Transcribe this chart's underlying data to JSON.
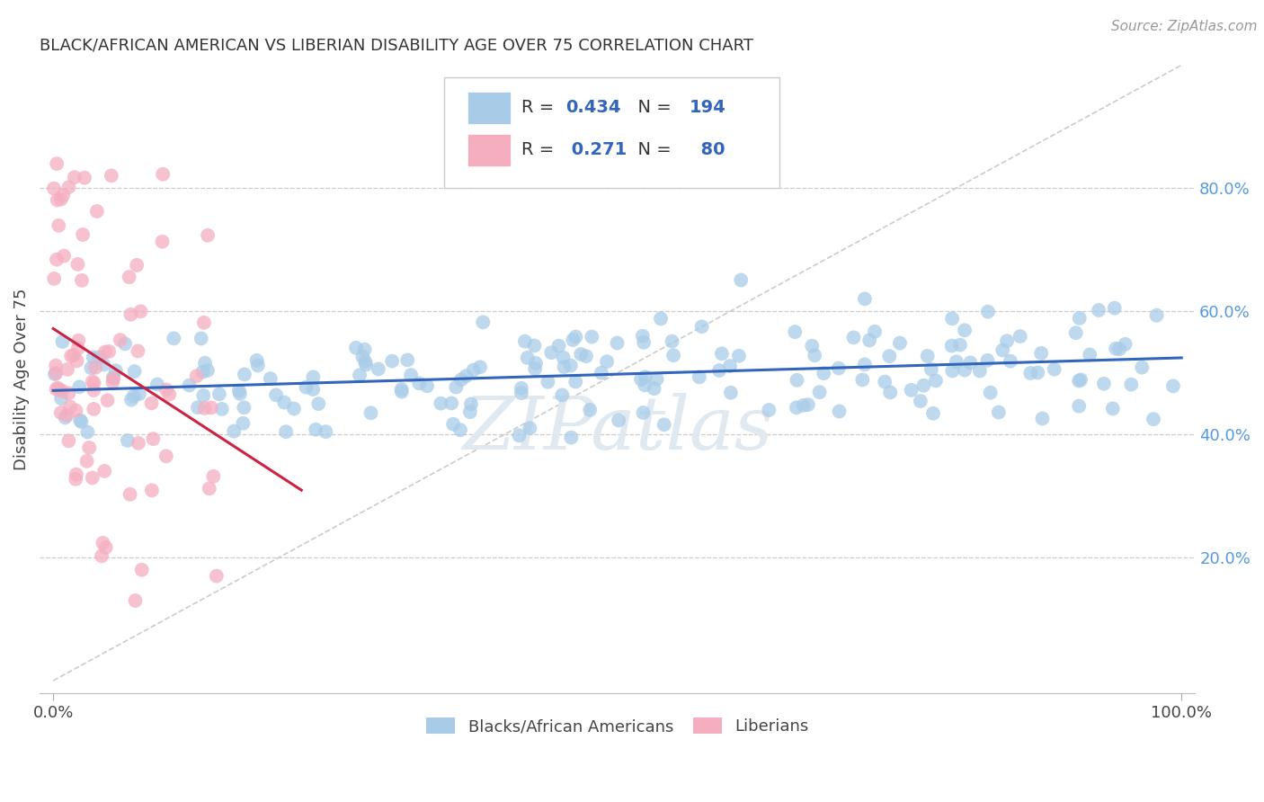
{
  "title": "BLACK/AFRICAN AMERICAN VS LIBERIAN DISABILITY AGE OVER 75 CORRELATION CHART",
  "source": "Source: ZipAtlas.com",
  "ylabel": "Disability Age Over 75",
  "watermark": "ZIPatlas",
  "blue_R": 0.434,
  "blue_N": 194,
  "pink_R": 0.271,
  "pink_N": 80,
  "blue_color": "#a8cce8",
  "pink_color": "#f5aec0",
  "blue_line_color": "#3366bb",
  "pink_line_color": "#cc2244",
  "blue_label": "Blacks/African Americans",
  "pink_label": "Liberians",
  "background_color": "#ffffff",
  "grid_color": "#cccccc",
  "right_yticks": [
    0.2,
    0.4,
    0.6,
    0.8
  ],
  "right_yticklabels": [
    "20.0%",
    "40.0%",
    "60.0%",
    "80.0%"
  ]
}
